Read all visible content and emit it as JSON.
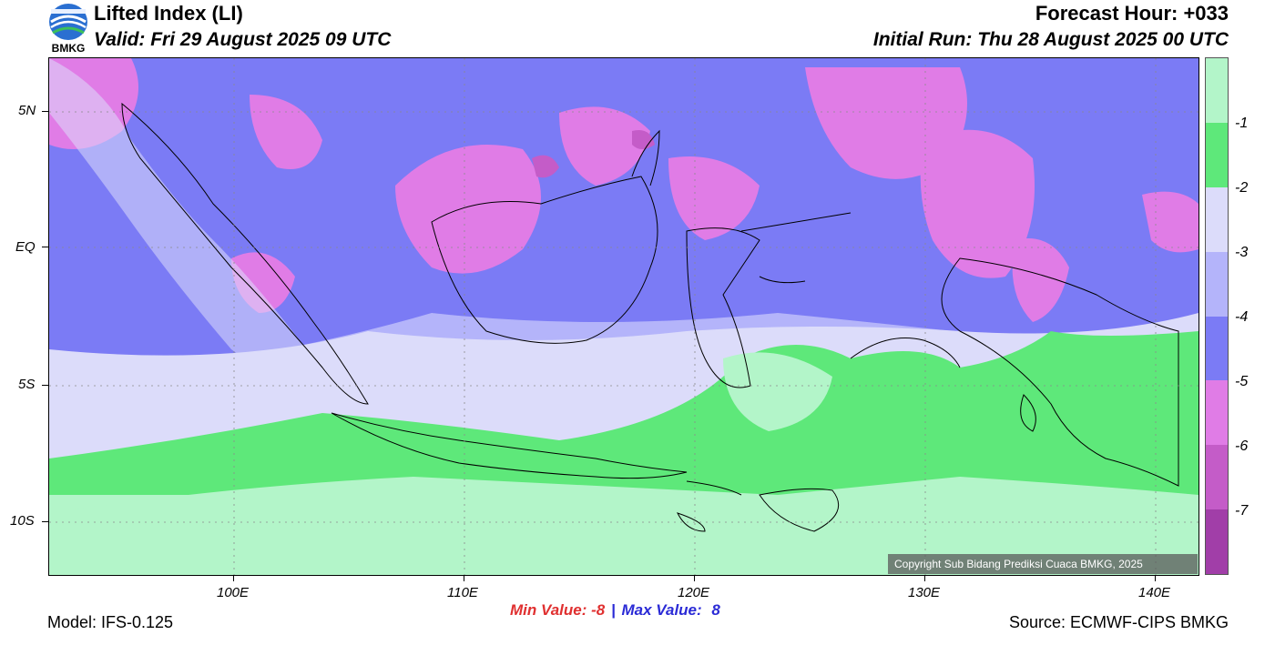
{
  "header": {
    "title": "Lifted Index (LI)",
    "valid": "Valid: Fri 29 August 2025 09 UTC",
    "forecast_hour": "Forecast Hour: +033",
    "initial_run": "Initial Run: Thu 28 August 2025 00 UTC",
    "logo_text": "BMKG"
  },
  "axes": {
    "lat_labels": [
      "5N",
      "EQ",
      "5S",
      "10S"
    ],
    "lon_labels": [
      "100E",
      "110E",
      "120E",
      "130E",
      "140E"
    ]
  },
  "colorbar": {
    "labels": [
      "-1",
      "-2",
      "-3",
      "-4",
      "-5",
      "-6",
      "-7"
    ],
    "colors": [
      "#b3f5c9",
      "#5ee87a",
      "#dcdcfa",
      "#b4b4fa",
      "#7b7bf5",
      "#e07ce6",
      "#c45cc8",
      "#a13ea8",
      "#882d92"
    ]
  },
  "stats": {
    "min_label": "Min Value:",
    "min_value": "-8",
    "separator": "|",
    "max_label": "Max Value:",
    "max_value": "8"
  },
  "footer": {
    "model": "Model: IFS-0.125",
    "source": "Source: ECMWF-CIPS BMKG",
    "copyright": "Copyright Sub Bidang Prediksi Cuaca BMKG, 2025"
  }
}
